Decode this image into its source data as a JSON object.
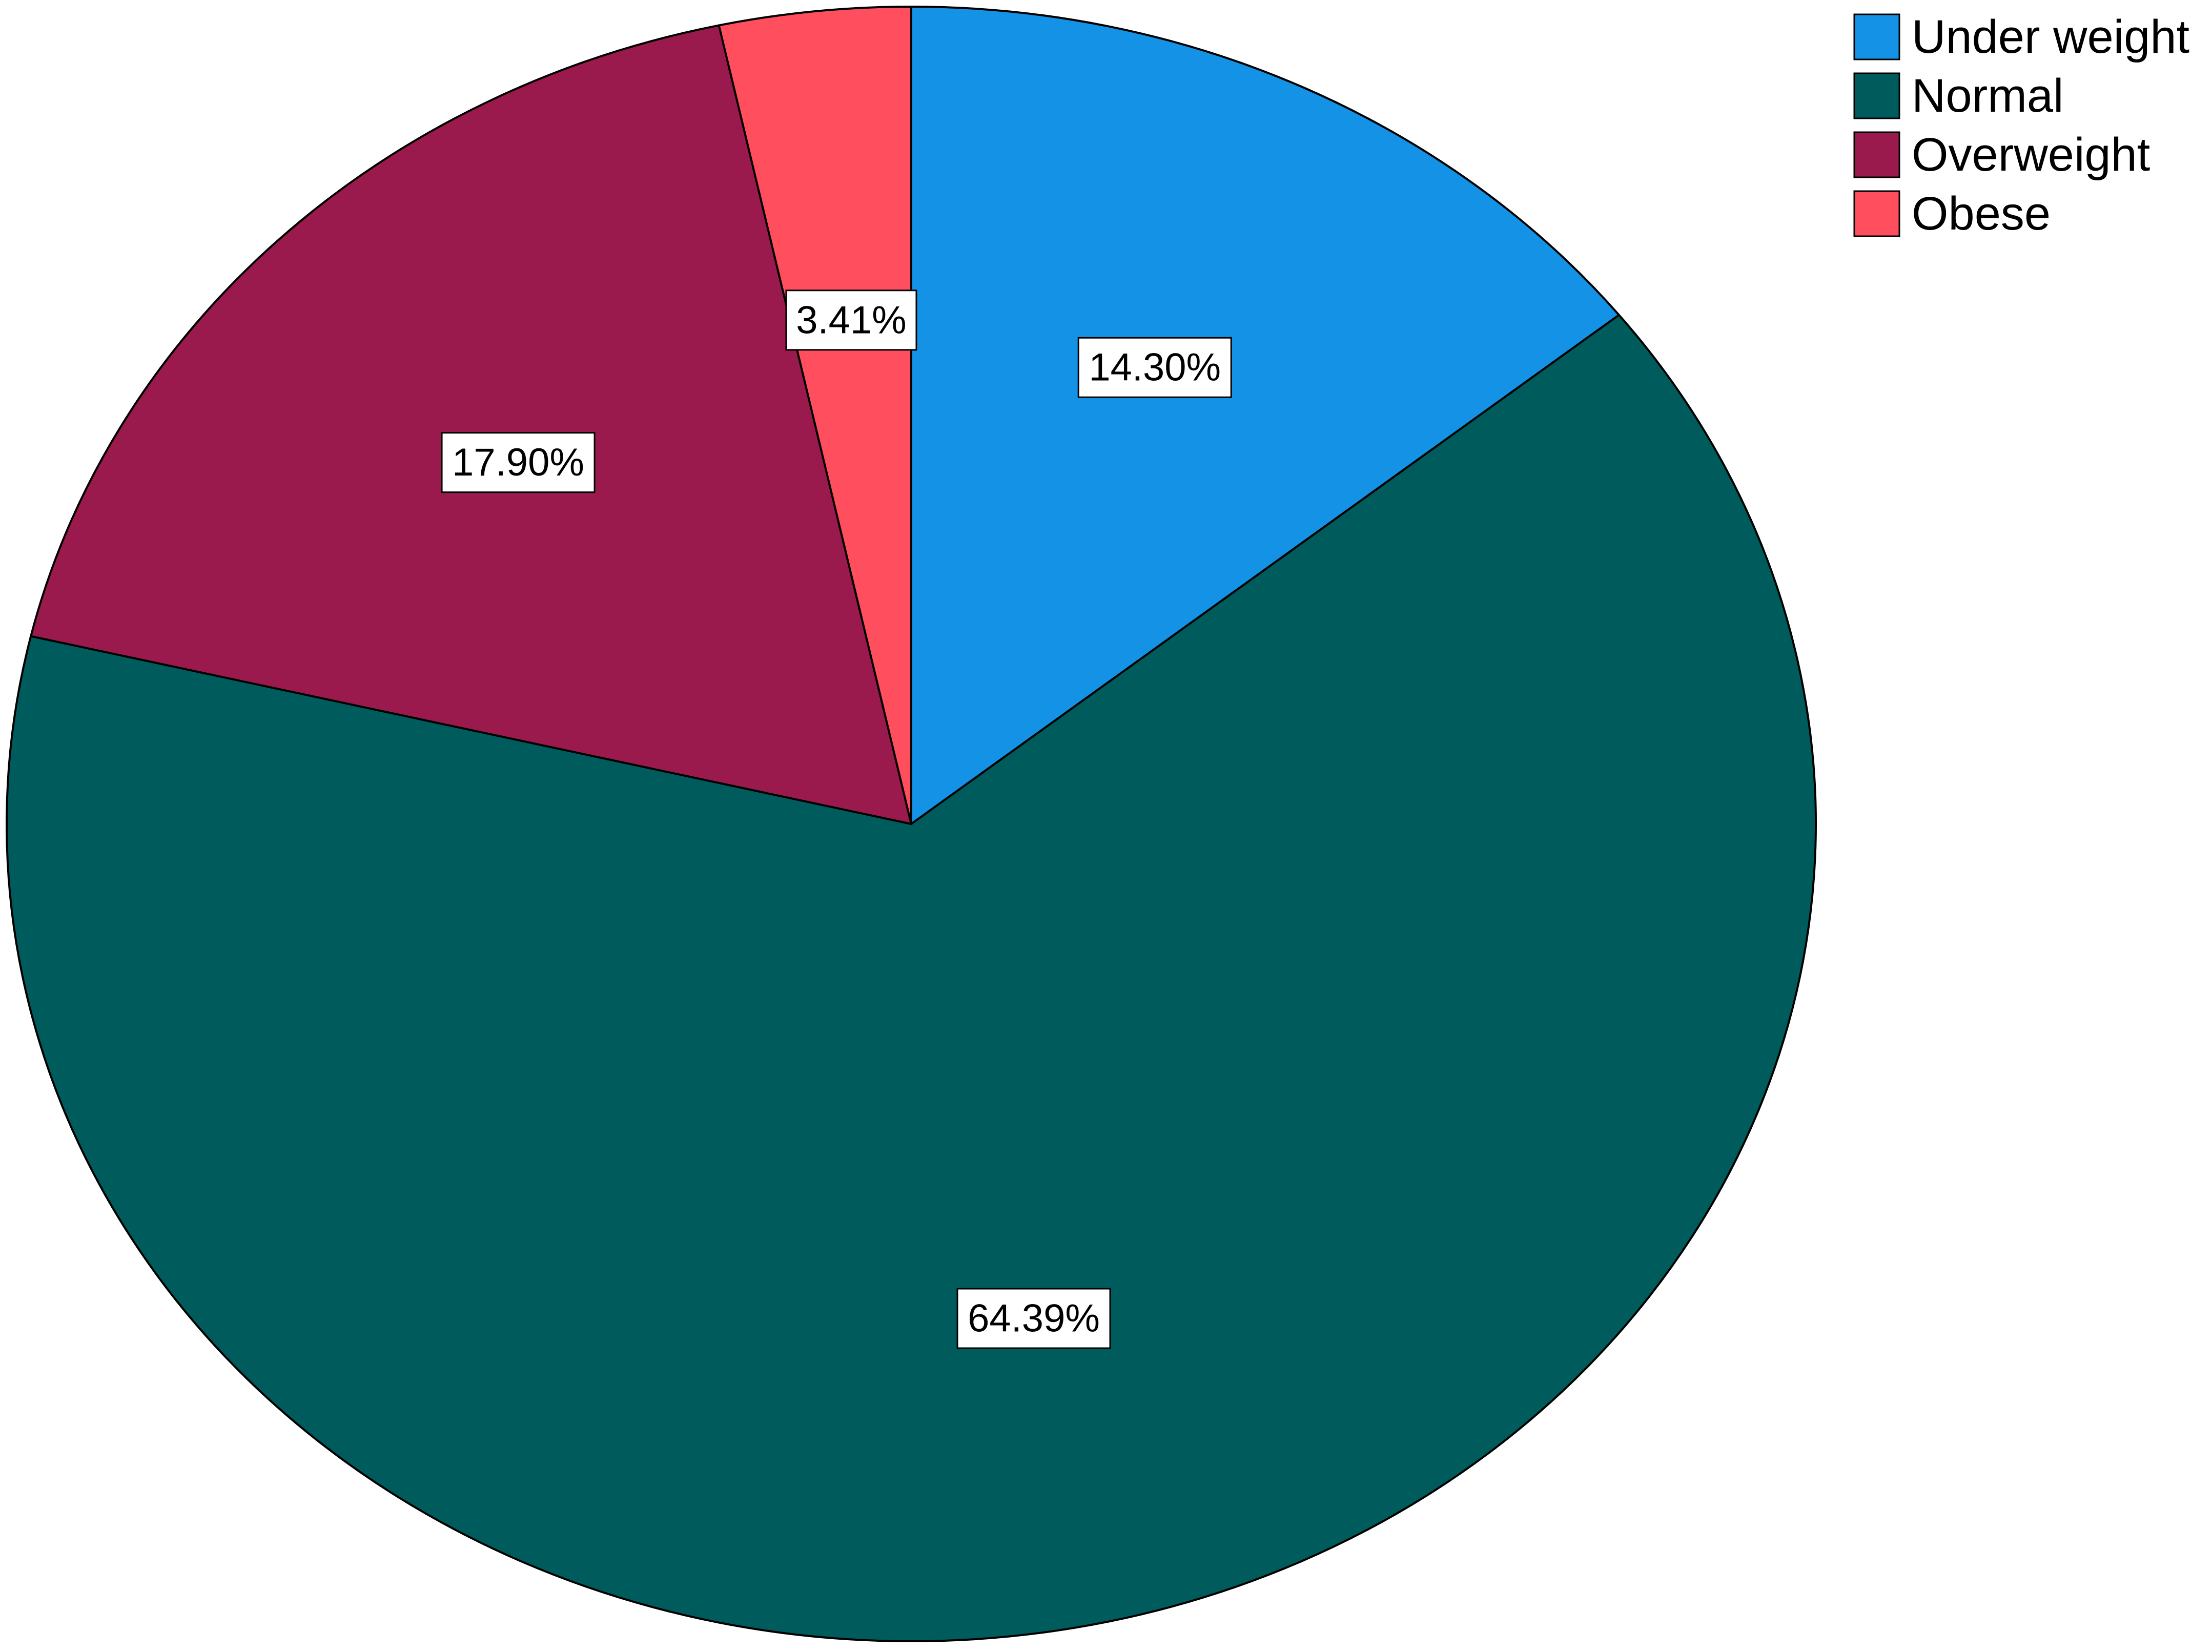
{
  "chart_data": {
    "type": "pie",
    "title": "",
    "categories": [
      "Under weight",
      "Normal",
      "Overweight",
      "Obese"
    ],
    "values": [
      14.3,
      64.39,
      17.9,
      3.41
    ],
    "value_labels": [
      "14.30%",
      "64.39%",
      "17.90%",
      "3.41%"
    ],
    "colors": [
      "#1492E6",
      "#005C5C",
      "#9B1A4D",
      "#FF4F5E"
    ],
    "start_angle": "12 o'clock",
    "direction": "clockwise",
    "legend": {
      "position": "top-right",
      "entries": [
        "Under weight",
        "Normal",
        "Overweight",
        "Obese"
      ]
    }
  }
}
